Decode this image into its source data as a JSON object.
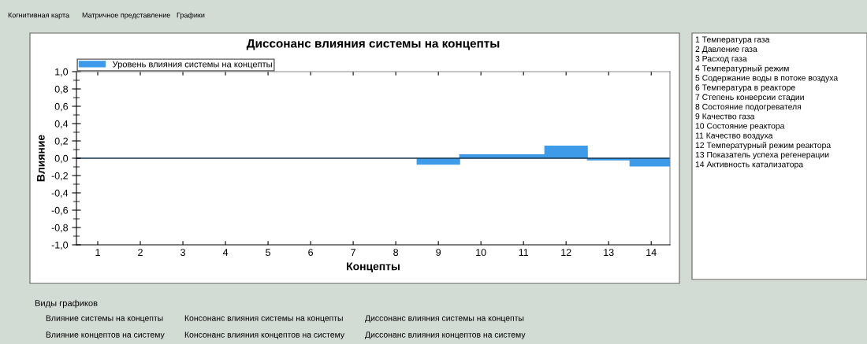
{
  "chart_data": {
    "type": "bar",
    "title": "Диссонанс влияния системы на концепты",
    "xlabel": "Концепты",
    "ylabel": "Влияние",
    "categories": [
      "1",
      "2",
      "3",
      "4",
      "5",
      "6",
      "7",
      "8",
      "9",
      "10",
      "11",
      "12",
      "13",
      "14"
    ],
    "series": [
      {
        "name": "Уровень влияния системы на концепты",
        "color": "#3d9be9",
        "values": [
          0,
          0,
          0,
          0,
          0,
          0,
          0,
          0,
          -0.07,
          0.04,
          0.04,
          0.14,
          -0.02,
          -0.09
        ]
      }
    ],
    "ylim": [
      -1.0,
      1.0
    ],
    "yticks": [
      {
        "value": -1.0,
        "label": "-1,0"
      },
      {
        "value": -0.8,
        "label": "-0,8"
      },
      {
        "value": -0.6,
        "label": "-0,6"
      },
      {
        "value": -0.4,
        "label": "-0,4"
      },
      {
        "value": -0.2,
        "label": "-0,2"
      },
      {
        "value": 0.0,
        "label": "0,0"
      },
      {
        "value": 0.2,
        "label": "0,2"
      },
      {
        "value": 0.4,
        "label": "0,4"
      },
      {
        "value": 0.6,
        "label": "0,6"
      },
      {
        "value": 0.8,
        "label": "0,8"
      },
      {
        "value": 1.0,
        "label": "1,0"
      }
    ],
    "ref_lines": [
      {
        "axis": "y",
        "value": 0,
        "label": null,
        "color": "#000000"
      }
    ],
    "grid": false,
    "legend": "top left",
    "annotations": [
      "Когнитивная карта",
      "Матричное представление",
      "Графики",
      "Виды графиков",
      "Влияние системы на концепты",
      "Консонанс влияния системы на концепты",
      "Диссонанс влияния системы на концепты",
      "Влияние концептов на систему",
      "Консонанс влияния концептов на систему",
      "Диссонанс влияния концептов на систему",
      "1 Температура газа",
      "2 Давление газа",
      "3 Расход газа",
      "4 Температурный режим",
      "5 Содержание воды в потоке воздуха",
      "6 Температура в реакторе",
      "7 Степень конверсии стадии",
      "8 Состояние подогревателя",
      "9 Качество газа",
      "10 Состояние реактора",
      "11 Качество воздуха",
      "12 Температурный режим реактора",
      "13 Показатель успеха регенерации",
      "14 Активность катализатора"
    ]
  }
}
